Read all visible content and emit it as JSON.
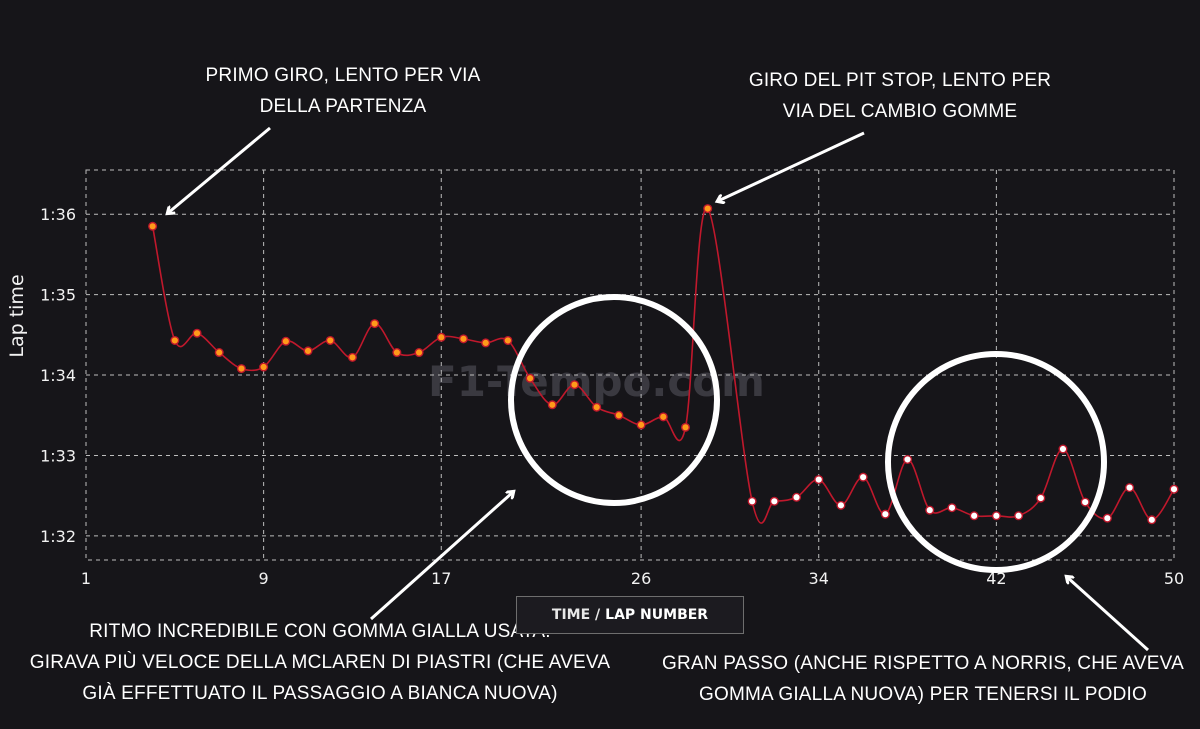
{
  "chart_data": {
    "type": "line",
    "ylabel": "Lap time",
    "xlabel_part1": "TIME /",
    "xlabel_part2": "LAP NUMBER",
    "watermark": "F1-Tempo.com",
    "xlim": [
      1,
      50
    ],
    "ylim": [
      91.7,
      96.55
    ],
    "xticks": [
      1,
      9,
      17,
      26,
      34,
      42,
      50
    ],
    "yticks": [
      {
        "value": 92,
        "label": "1:32"
      },
      {
        "value": 93,
        "label": "1:33"
      },
      {
        "value": 94,
        "label": "1:34"
      },
      {
        "value": 95,
        "label": "1:35"
      },
      {
        "value": 96,
        "label": "1:36"
      }
    ],
    "series": [
      {
        "name": "Lap times",
        "x": [
          4,
          5,
          6,
          7,
          8,
          9,
          10,
          11,
          12,
          13,
          14,
          15,
          16,
          17,
          18,
          19,
          20,
          21,
          22,
          23,
          24,
          25,
          26,
          27,
          28,
          29,
          31,
          32,
          33,
          34,
          35,
          36,
          37,
          38,
          39,
          40,
          41,
          42,
          43,
          44,
          45,
          46,
          47,
          48,
          49,
          50
        ],
        "y": [
          95.85,
          94.43,
          94.52,
          94.28,
          94.08,
          94.1,
          94.42,
          94.3,
          94.43,
          94.22,
          94.64,
          94.28,
          94.28,
          94.47,
          94.45,
          94.4,
          94.43,
          93.96,
          93.63,
          93.88,
          93.6,
          93.5,
          93.38,
          93.48,
          93.35,
          96.07,
          92.43,
          92.43,
          92.48,
          92.7,
          92.38,
          92.73,
          92.27,
          92.95,
          92.32,
          92.35,
          92.25,
          92.25,
          92.25,
          92.47,
          93.08,
          92.42,
          92.22,
          92.6,
          92.2,
          92.58
        ],
        "color": "#c0182c",
        "marker_colors": {
          "orange": "#ff9a1a",
          "white": "#ffffff"
        },
        "white_from_x": 31
      }
    ],
    "annotations": [
      {
        "line1": "PRIMO GIRO, LENTO PER VIA",
        "line2": "DELLA PARTENZA"
      },
      {
        "line1": "GIRO DEL PIT STOP, LENTO PER",
        "line2": "VIA DEL CAMBIO GOMME"
      },
      {
        "line1": "RITMO INCREDIBILE CON GOMMA GIALLA USATA:",
        "line2": "GIRAVA PIÙ VELOCE DELLA MCLAREN DI PIASTRI (CHE AVEVA",
        "line3": "GIÀ EFFETTUATO IL PASSAGGIO A BIANCA NUOVA)"
      },
      {
        "line1": "GRAN PASSO (ANCHE RISPETTO A NORRIS, CHE AVEVA",
        "line2": "GOMMA GIALLA NUOVA) PER TENERSI IL PODIO"
      }
    ]
  }
}
